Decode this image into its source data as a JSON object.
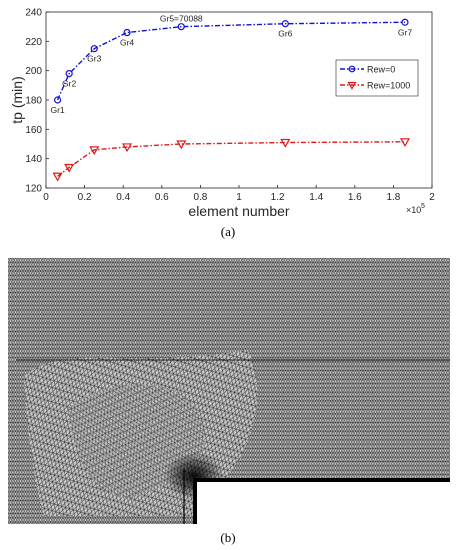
{
  "chart_data": {
    "type": "line",
    "xlabel": "element number",
    "ylabel": "tp (min)",
    "x_exponent_label": "×10",
    "x_exponent_power": "5",
    "xlim": [
      0,
      200000
    ],
    "ylim": [
      120,
      240
    ],
    "x_ticks": [
      0,
      20000,
      40000,
      60000,
      80000,
      100000,
      120000,
      140000,
      160000,
      180000,
      200000
    ],
    "x_tick_labels": [
      "0",
      "0.2",
      "0.4",
      "0.6",
      "0.8",
      "1",
      "1.2",
      "1.4",
      "1.6",
      "1.8",
      "2"
    ],
    "y_ticks": [
      120,
      140,
      160,
      180,
      200,
      220,
      240
    ],
    "y_tick_labels": [
      "120",
      "140",
      "160",
      "180",
      "200",
      "220",
      "240"
    ],
    "grid": false,
    "legend_position": "right",
    "x": [
      6000,
      12000,
      25000,
      42000,
      70088,
      124000,
      186000
    ],
    "series": [
      {
        "name": "Rew=0",
        "values": [
          180,
          198,
          215,
          226,
          230,
          232,
          233
        ],
        "color": "#1010d8",
        "marker": "circle"
      },
      {
        "name": "Rew=1000",
        "values": [
          128,
          134,
          146,
          148,
          150,
          151,
          151.5
        ],
        "color": "#e01818",
        "marker": "triangle-down"
      }
    ],
    "annotations": [
      "Gr1",
      "Gr2",
      "Gr3",
      "Gr4",
      "Gr5=70088",
      "Gr6",
      "Gr7"
    ]
  },
  "captions": {
    "a": "(a)",
    "b": "(b)"
  }
}
